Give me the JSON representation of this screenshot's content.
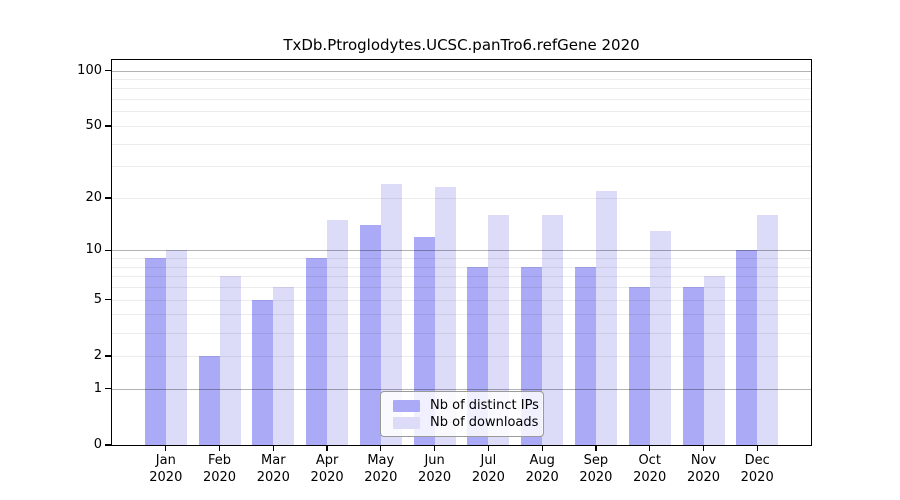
{
  "title": "TxDb.Ptroglodytes.UCSC.panTro6.refGene 2020",
  "chart_data": {
    "type": "bar",
    "title": "TxDb.Ptroglodytes.UCSC.panTro6.refGene 2020",
    "categories": [
      "Jan",
      "Feb",
      "Mar",
      "Apr",
      "May",
      "Jun",
      "Jul",
      "Aug",
      "Sep",
      "Oct",
      "Nov",
      "Dec"
    ],
    "year": "2020",
    "series": [
      {
        "name": "Nb of distinct IPs",
        "color": "#aaaaf7",
        "values": [
          9,
          2,
          5,
          9,
          14,
          12,
          8,
          8,
          8,
          6,
          6,
          10
        ]
      },
      {
        "name": "Nb of downloads",
        "color": "#dcdcf9",
        "values": [
          10,
          7,
          6,
          15,
          24,
          23,
          16,
          16,
          22,
          13,
          7,
          16
        ]
      }
    ],
    "xlabel": "",
    "ylabel": "",
    "yscale": "log1p",
    "ylim": [
      0,
      114
    ],
    "ytick_labels": [
      100,
      50,
      20,
      10,
      5,
      2,
      1,
      0
    ],
    "major_gridlines": [
      1,
      10,
      100
    ],
    "minor_gridlines": [
      2,
      3,
      4,
      5,
      6,
      7,
      8,
      9,
      20,
      30,
      40,
      50,
      60,
      70,
      80,
      90
    ],
    "grid": true,
    "legend_position": "lower center"
  }
}
